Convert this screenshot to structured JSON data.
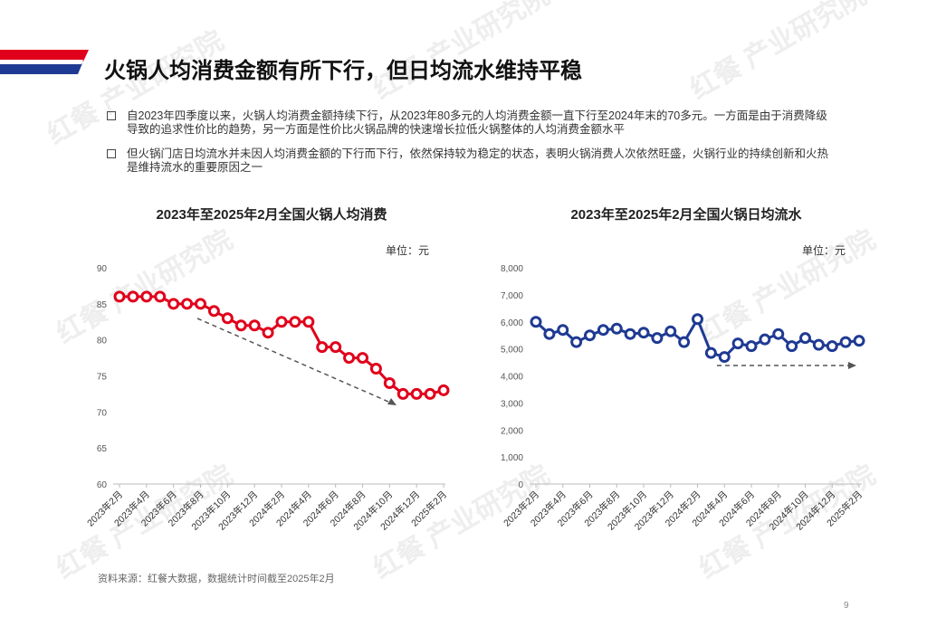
{
  "title": "火锅人均消费金额有所下行，但日均流水维持平稳",
  "bullets": [
    "自2023年四季度以来，火锅人均消费金额持续下行，从2023年80多元的人均消费金额一直下行至2024年末的70多元。一方面是由于消费降级导致的追求性价比的趋势，另一方面是性价比火锅品牌的快速增长拉低火锅整体的人均消费金额水平",
    "但火锅门店日均流水并未因人均消费金额的下行而下行，依然保持较为稳定的状态，表明火锅消费人次依然旺盛，火锅行业的持续创新和火热是维持流水的重要原因之一"
  ],
  "watermark": "红餐 产业研究院",
  "source": "资料来源：红餐大数据，数据统计时间截至2025年2月",
  "page_number": "9",
  "chart_data": [
    {
      "type": "line",
      "title": "2023年至2025年2月全国火锅人均消费",
      "unit": "单位：元",
      "color": "#e0001b",
      "grid": false,
      "categories": [
        "2023年2月",
        null,
        "2023年4月",
        null,
        "2023年6月",
        null,
        "2023年8月",
        null,
        "2023年10月",
        null,
        "2023年12月",
        null,
        "2024年2月",
        null,
        "2024年4月",
        null,
        "2024年6月",
        null,
        "2024年8月",
        null,
        "2024年10月",
        null,
        "2024年12月",
        null,
        "2025年2月"
      ],
      "values": [
        86,
        86,
        86,
        86,
        85,
        85,
        85,
        84,
        83,
        82,
        82,
        81,
        82.5,
        82.5,
        82.5,
        79,
        79,
        77.5,
        77.5,
        76,
        74,
        72.5,
        72.5,
        72.5,
        73
      ],
      "ylim": [
        60,
        90
      ],
      "yticks": [
        60,
        65,
        70,
        75,
        80,
        85,
        90
      ]
    },
    {
      "type": "line",
      "title": "2023年至2025年2月全国火锅日均流水",
      "unit": "单位：元",
      "color": "#1f3a93",
      "grid": false,
      "categories": [
        "2023年2月",
        null,
        "2023年4月",
        null,
        "2023年6月",
        null,
        "2023年8月",
        null,
        "2023年10月",
        null,
        "2023年12月",
        null,
        "2024年2月",
        null,
        "2024年4月",
        null,
        "2024年6月",
        null,
        "2024年8月",
        null,
        "2024年10月",
        null,
        "2024年12月",
        null,
        "2025年2月"
      ],
      "values": [
        6000,
        5550,
        5700,
        5250,
        5500,
        5700,
        5750,
        5550,
        5600,
        5400,
        5650,
        5250,
        6100,
        4850,
        4700,
        5200,
        5100,
        5350,
        5550,
        5100,
        5400,
        5150,
        5100,
        5250,
        5300
      ],
      "ylim": [
        0,
        8000
      ],
      "yticks": [
        0,
        {
          "value": 1000,
          "label": "1,000"
        },
        {
          "value": 2000,
          "label": "2,000"
        },
        {
          "value": 3000,
          "label": "3,000"
        },
        {
          "value": 4000,
          "label": "4,000"
        },
        {
          "value": 5000,
          "label": "5,000"
        },
        {
          "value": 6000,
          "label": "6,000"
        },
        {
          "value": 7000,
          "label": "7,000"
        },
        {
          "value": 8000,
          "label": "8,000"
        }
      ]
    }
  ]
}
